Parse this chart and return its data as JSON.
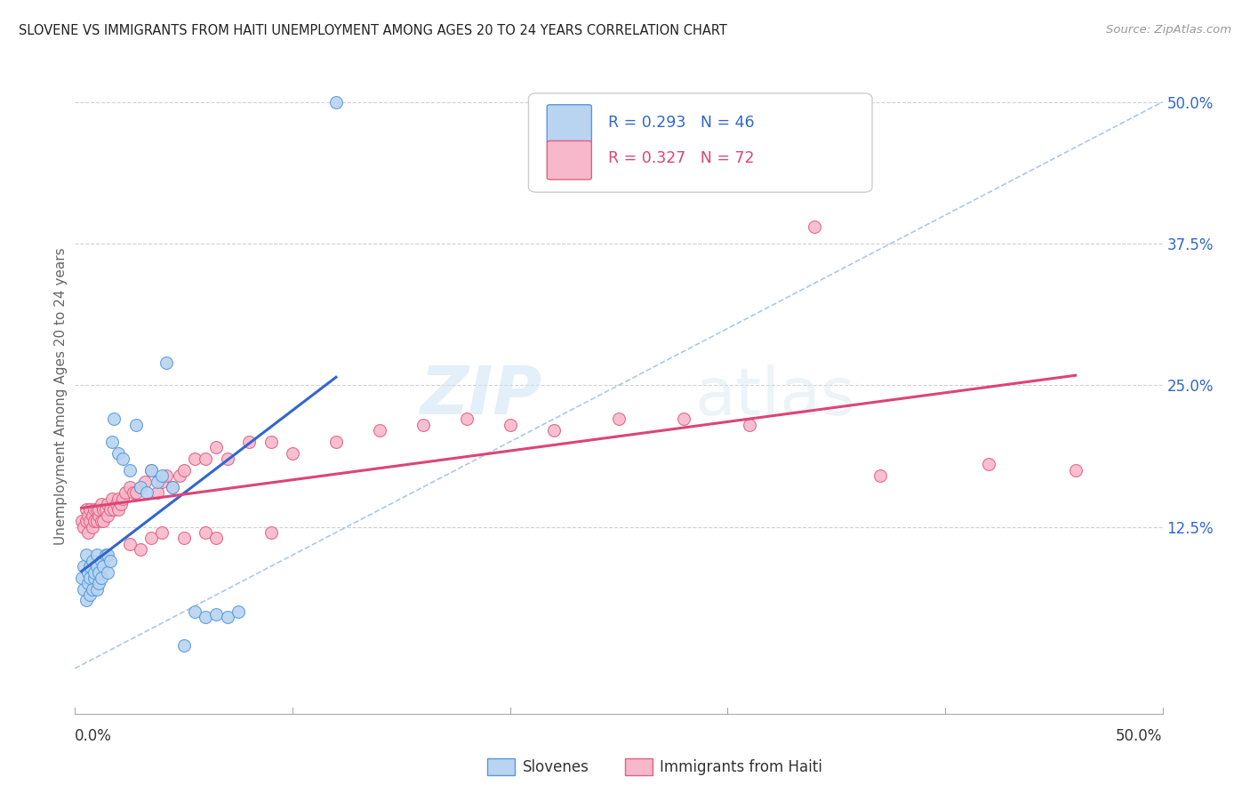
{
  "title": "SLOVENE VS IMMIGRANTS FROM HAITI UNEMPLOYMENT AMONG AGES 20 TO 24 YEARS CORRELATION CHART",
  "source_text": "Source: ZipAtlas.com",
  "ylabel": "Unemployment Among Ages 20 to 24 years",
  "xlim": [
    0.0,
    0.5
  ],
  "ylim": [
    -0.04,
    0.52
  ],
  "yticks": [
    0.125,
    0.25,
    0.375,
    0.5
  ],
  "ytick_labels": [
    "12.5%",
    "25.0%",
    "37.5%",
    "50.0%"
  ],
  "background_color": "#ffffff",
  "grid_color": "#cccccc",
  "slovene_fill": "#b8d4f0",
  "slovene_edge": "#5599dd",
  "haiti_fill": "#f8b8cc",
  "haiti_edge": "#e06080",
  "slovene_line_color": "#3366cc",
  "haiti_line_color": "#dd4477",
  "diagonal_color": "#99bbdd",
  "legend_slovene_label": "R = 0.293   N = 46",
  "legend_haiti_label": "R = 0.327   N = 72",
  "legend_bottom_slovene": "Slovenes",
  "legend_bottom_haiti": "Immigrants from Haiti",
  "watermark_zip": "ZIP",
  "watermark_atlas": "atlas",
  "slovene_x": [
    0.003,
    0.004,
    0.004,
    0.005,
    0.005,
    0.006,
    0.006,
    0.007,
    0.007,
    0.007,
    0.008,
    0.008,
    0.009,
    0.009,
    0.01,
    0.01,
    0.01,
    0.011,
    0.011,
    0.012,
    0.012,
    0.013,
    0.014,
    0.015,
    0.015,
    0.016,
    0.017,
    0.018,
    0.02,
    0.022,
    0.025,
    0.028,
    0.03,
    0.033,
    0.035,
    0.038,
    0.04,
    0.042,
    0.045,
    0.05,
    0.055,
    0.06,
    0.065,
    0.07,
    0.075,
    0.12
  ],
  "slovene_y": [
    0.08,
    0.07,
    0.09,
    0.06,
    0.1,
    0.075,
    0.085,
    0.065,
    0.08,
    0.09,
    0.07,
    0.095,
    0.08,
    0.085,
    0.07,
    0.09,
    0.1,
    0.075,
    0.085,
    0.08,
    0.095,
    0.09,
    0.1,
    0.085,
    0.1,
    0.095,
    0.2,
    0.22,
    0.19,
    0.185,
    0.175,
    0.215,
    0.16,
    0.155,
    0.175,
    0.165,
    0.17,
    0.27,
    0.16,
    0.02,
    0.05,
    0.045,
    0.048,
    0.045,
    0.05,
    0.5
  ],
  "haiti_x": [
    0.003,
    0.004,
    0.005,
    0.005,
    0.006,
    0.006,
    0.007,
    0.007,
    0.008,
    0.008,
    0.009,
    0.009,
    0.01,
    0.01,
    0.011,
    0.011,
    0.012,
    0.012,
    0.013,
    0.013,
    0.014,
    0.015,
    0.015,
    0.016,
    0.017,
    0.018,
    0.019,
    0.02,
    0.02,
    0.021,
    0.022,
    0.023,
    0.025,
    0.027,
    0.028,
    0.03,
    0.032,
    0.035,
    0.038,
    0.04,
    0.042,
    0.045,
    0.048,
    0.05,
    0.055,
    0.06,
    0.065,
    0.07,
    0.08,
    0.09,
    0.1,
    0.12,
    0.14,
    0.16,
    0.18,
    0.2,
    0.22,
    0.25,
    0.28,
    0.31,
    0.34,
    0.37,
    0.42,
    0.46,
    0.03,
    0.025,
    0.035,
    0.04,
    0.05,
    0.06,
    0.065,
    0.09
  ],
  "haiti_y": [
    0.13,
    0.125,
    0.13,
    0.14,
    0.12,
    0.135,
    0.13,
    0.14,
    0.125,
    0.135,
    0.14,
    0.13,
    0.13,
    0.14,
    0.135,
    0.14,
    0.13,
    0.145,
    0.14,
    0.13,
    0.14,
    0.135,
    0.145,
    0.14,
    0.15,
    0.14,
    0.145,
    0.14,
    0.15,
    0.145,
    0.15,
    0.155,
    0.16,
    0.155,
    0.155,
    0.16,
    0.165,
    0.175,
    0.155,
    0.165,
    0.17,
    0.16,
    0.17,
    0.175,
    0.185,
    0.185,
    0.195,
    0.185,
    0.2,
    0.2,
    0.19,
    0.2,
    0.21,
    0.215,
    0.22,
    0.215,
    0.21,
    0.22,
    0.22,
    0.215,
    0.39,
    0.17,
    0.18,
    0.175,
    0.105,
    0.11,
    0.115,
    0.12,
    0.115,
    0.12,
    0.115,
    0.12
  ]
}
